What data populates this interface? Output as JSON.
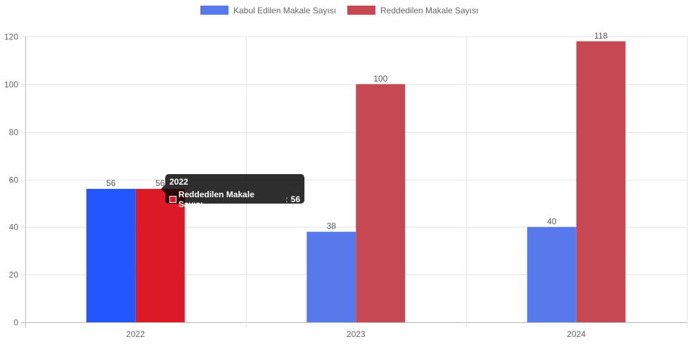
{
  "chart_data": {
    "type": "bar",
    "categories": [
      "2022",
      "2023",
      "2024"
    ],
    "series": [
      {
        "name": "Kabul Edilen Makale Sayısı",
        "color": "#5779EC",
        "highlight_color": "#2356FF",
        "values": [
          56,
          38,
          40
        ]
      },
      {
        "name": "Reddedilen Makale Sayısı",
        "color": "#C64852",
        "highlight_color": "#DC1A27",
        "values": [
          56,
          100,
          118
        ]
      }
    ],
    "highlighted_category_index": 0,
    "yticks": [
      "0",
      "20",
      "40",
      "60",
      "80",
      "100",
      "120"
    ],
    "ylim": [
      0,
      120
    ],
    "grid": true,
    "legend_position": "top",
    "data_labels": true
  },
  "tooltip": {
    "title": "2022",
    "series_label": "Reddedilen Makale Sayısı",
    "separator": ":",
    "value": "56",
    "swatch_color": "#DC1A27"
  }
}
